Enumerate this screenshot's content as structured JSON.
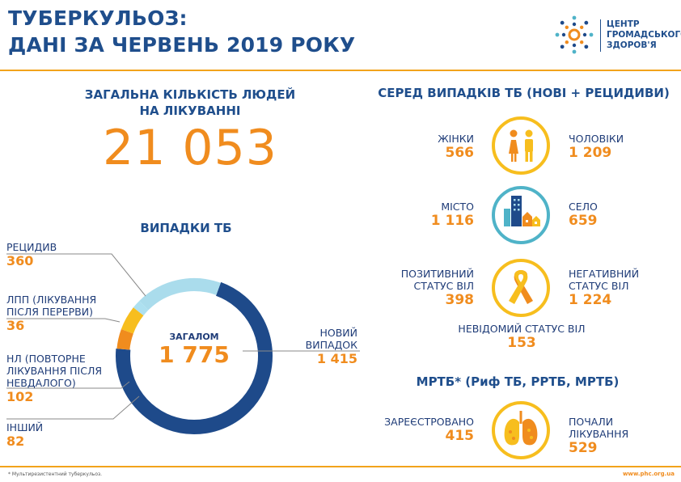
{
  "header": {
    "title_line1": "ТУБЕРКУЛЬОЗ:",
    "title_line2": "ДАНІ ЗА ЧЕРВЕНЬ 2019 РОКУ",
    "logo_line1": "ЦЕНТР",
    "logo_line2": "ГРОМАДСЬКОГО",
    "logo_line3": "ЗДОРОВ'Я"
  },
  "treatment": {
    "title_line1": "ЗАГАЛЬНА КІЛЬКІСТЬ ЛЮДЕЙ",
    "title_line2": "НА ЛІКУВАННІ",
    "value": "21 053"
  },
  "cases": {
    "title": "ВИПАДКИ ТБ",
    "total_label": "ЗАГАЛОМ",
    "total_value": "1 775",
    "segments": [
      {
        "label": "НОВИЙ ВИПАДОК",
        "label_line1": "НОВИЙ",
        "label_line2": "ВИПАДОК",
        "value": 1415,
        "display": "1 415",
        "color": "#1e4a8a"
      },
      {
        "label": "ІНШИЙ",
        "value": 82,
        "display": "82",
        "color": "#f08c1e"
      },
      {
        "label": "НЛ (ПОВТОРНЕ ЛІКУВАННЯ ПІСЛЯ НЕВДАЛОГО)",
        "label_line1": "НЛ (ПОВТОРНЕ",
        "label_line2": "ЛІКУВАННЯ ПІСЛЯ",
        "label_line3": "НЕВДАЛОГО)",
        "value": 102,
        "display": "102",
        "color": "#f7be1e"
      },
      {
        "label": "ЛПП (ЛІКУВАННЯ ПІСЛЯ ПЕРЕРВИ)",
        "label_line1": "ЛПП (ЛІКУВАННЯ",
        "label_line2": "ПІСЛЯ ПЕРЕРВИ)",
        "value": 36,
        "display": "36",
        "color": "#ade0f0"
      },
      {
        "label": "РЕЦИДИВ",
        "value": 360,
        "display": "360",
        "color": "#aadcec"
      }
    ]
  },
  "breakdown": {
    "title": "СЕРЕД ВИПАДКІВ ТБ (НОВІ + РЕЦИДИВИ)",
    "women": {
      "label": "ЖІНКИ",
      "value": "566"
    },
    "men": {
      "label": "ЧОЛОВІКИ",
      "value": "1 209"
    },
    "city": {
      "label": "МІСТО",
      "value": "1 116"
    },
    "village": {
      "label": "СЕЛО",
      "value": "659"
    },
    "hiv_pos": {
      "label_line1": "ПОЗИТИВНИЙ",
      "label_line2": "СТАТУС ВІЛ",
      "value": "398"
    },
    "hiv_neg": {
      "label_line1": "НЕГАТИВНИЙ",
      "label_line2": "СТАТУС  ВІЛ",
      "value": "1 224"
    },
    "hiv_unknown": {
      "label": "НЕВІДОМИЙ СТАТУС ВІЛ",
      "value": "153"
    }
  },
  "mdr": {
    "title": "МРТБ* (Риф ТБ, РРТБ, МРТБ)",
    "registered": {
      "label": "ЗАРЕЄСТРОВАНО",
      "value": "415"
    },
    "started": {
      "label": "ПОЧАЛИ ЛІКУВАННЯ",
      "value": "529"
    }
  },
  "footer": {
    "note": "* Мультирезистентний туберкульоз.",
    "url": "www.phc.org.ua"
  },
  "colors": {
    "navy": "#1e4a8a",
    "orange": "#f08c1e",
    "yellow": "#f7be1e",
    "lightblue": "#aadcec",
    "teal": "#4fb3c8"
  }
}
